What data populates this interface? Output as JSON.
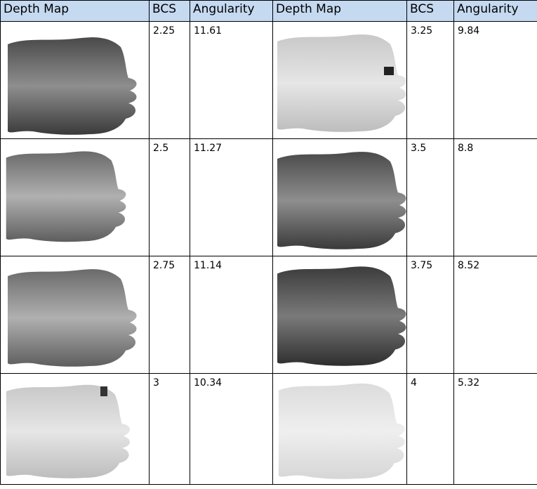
{
  "headers": [
    "Depth Map",
    "BCS",
    "Angularity",
    "Depth Map",
    "BCS",
    "Angularity"
  ],
  "rows": [
    {
      "left": {
        "bcs": "2.25",
        "angularity": "11.61",
        "depth_map_icon": "cow-back-depth-map-dark"
      },
      "right": {
        "bcs": "3.25",
        "angularity": "9.84",
        "depth_map_icon": "cow-back-depth-map-light"
      }
    },
    {
      "left": {
        "bcs": "2.5",
        "angularity": "11.27",
        "depth_map_icon": "cow-back-depth-map-medium"
      },
      "right": {
        "bcs": "3.5",
        "angularity": "8.8",
        "depth_map_icon": "cow-back-depth-map-dark"
      }
    },
    {
      "left": {
        "bcs": "2.75",
        "angularity": "11.14",
        "depth_map_icon": "cow-back-depth-map-medium"
      },
      "right": {
        "bcs": "3.75",
        "angularity": "8.52",
        "depth_map_icon": "cow-back-depth-map-darkest"
      }
    },
    {
      "left": {
        "bcs": "3",
        "angularity": "10.34",
        "depth_map_icon": "cow-back-depth-map-light"
      },
      "right": {
        "bcs": "4",
        "angularity": "5.32",
        "depth_map_icon": "cow-back-depth-map-lightest"
      }
    }
  ],
  "colors": {
    "header_bg": "#c5d9f1",
    "border": "#000000"
  }
}
